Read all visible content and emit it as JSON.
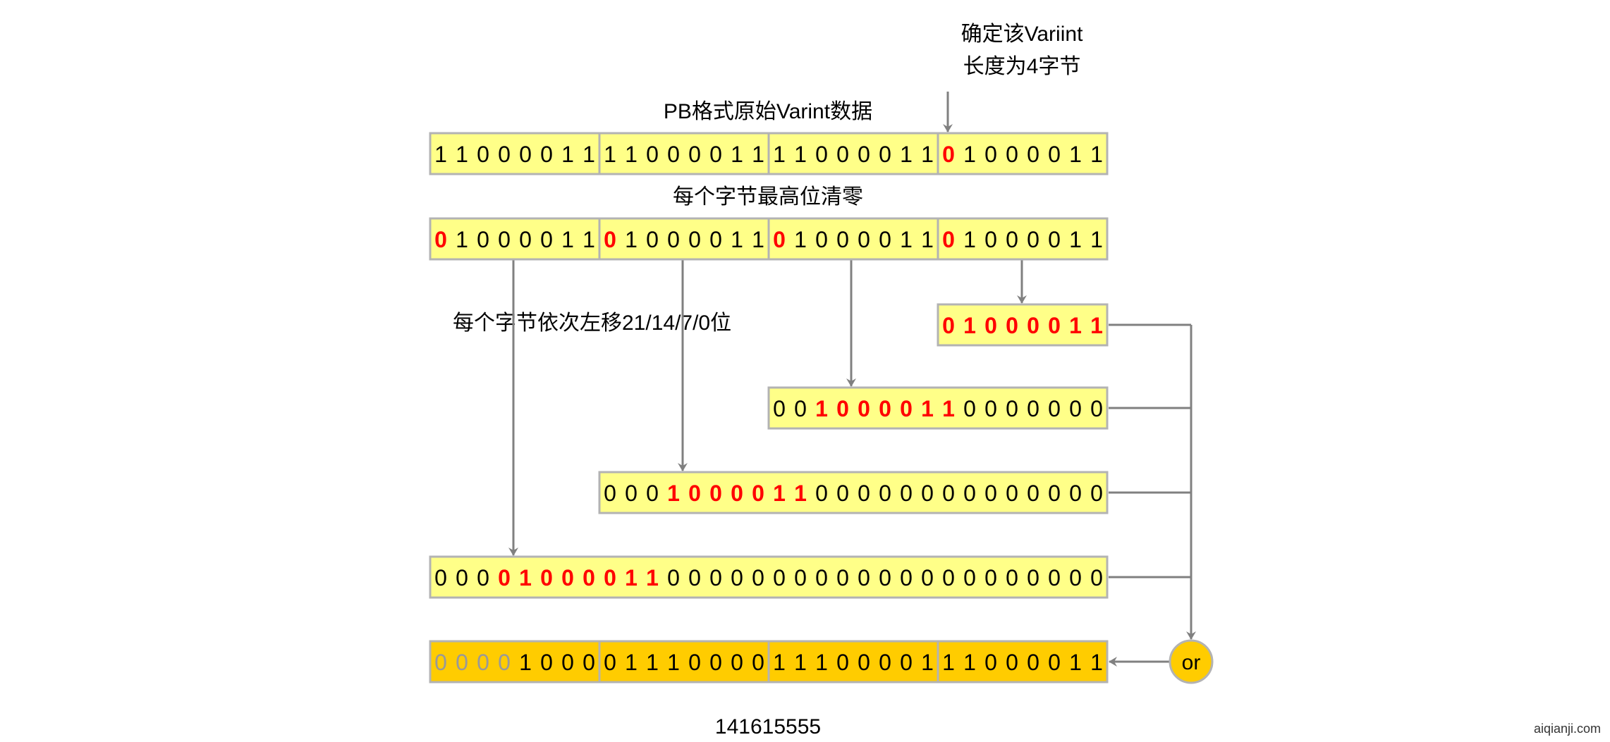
{
  "labels": {
    "length_note_line1": "确定该Variint",
    "length_note_line2": "长度为4字节",
    "raw_title": "PB格式原始Varint数据",
    "clear_msb_title": "每个字节最高位清零",
    "shift_note": "每个字节依次左移21/14/7/0位",
    "result_value": "141615555",
    "or_operator": "or",
    "watermark": "aiqianji.com"
  },
  "colors": {
    "box_fill": "#ffff88",
    "result_fill": "#ffcc00",
    "border": "#b3b3b3",
    "arrow": "#808080",
    "highlight": "#ff0000",
    "dim": "#999999",
    "text": "#000000"
  },
  "rows": [
    {
      "name": "raw-varint-row",
      "bits": "11000011110000111100001101000011",
      "red": [
        24
      ],
      "gray": [],
      "bytes_divided": true,
      "result": false
    },
    {
      "name": "msb-cleared-row",
      "bits": "01000011010000110100001101000011",
      "red": [
        0,
        8,
        16,
        24
      ],
      "gray": [],
      "bytes_divided": true,
      "result": false
    },
    {
      "name": "shift-0-row",
      "bits": "01000011",
      "red": [
        0,
        1,
        2,
        3,
        4,
        5,
        6,
        7
      ],
      "gray": [],
      "bytes_divided": false,
      "result": false
    },
    {
      "name": "shift-7-row",
      "bits": "0010000110000000",
      "red": [
        2,
        3,
        4,
        5,
        6,
        7,
        8
      ],
      "gray": [],
      "bytes_divided": false,
      "result": false
    },
    {
      "name": "shift-14-row",
      "bits": "000100001100000000000000",
      "red": [
        3,
        4,
        5,
        6,
        7,
        8,
        9
      ],
      "gray": [],
      "bytes_divided": false,
      "result": false
    },
    {
      "name": "shift-21-row",
      "bits": "00001000011000000000000000000000",
      "red": [
        3,
        4,
        5,
        6,
        7,
        8,
        9,
        10
      ],
      "gray": [],
      "bytes_divided": false,
      "result": false
    },
    {
      "name": "or-result-row",
      "bits": "00001000011100001110000111000011",
      "red": [],
      "gray": [
        0,
        1,
        2,
        3
      ],
      "bytes_divided": true,
      "result": true
    }
  ]
}
